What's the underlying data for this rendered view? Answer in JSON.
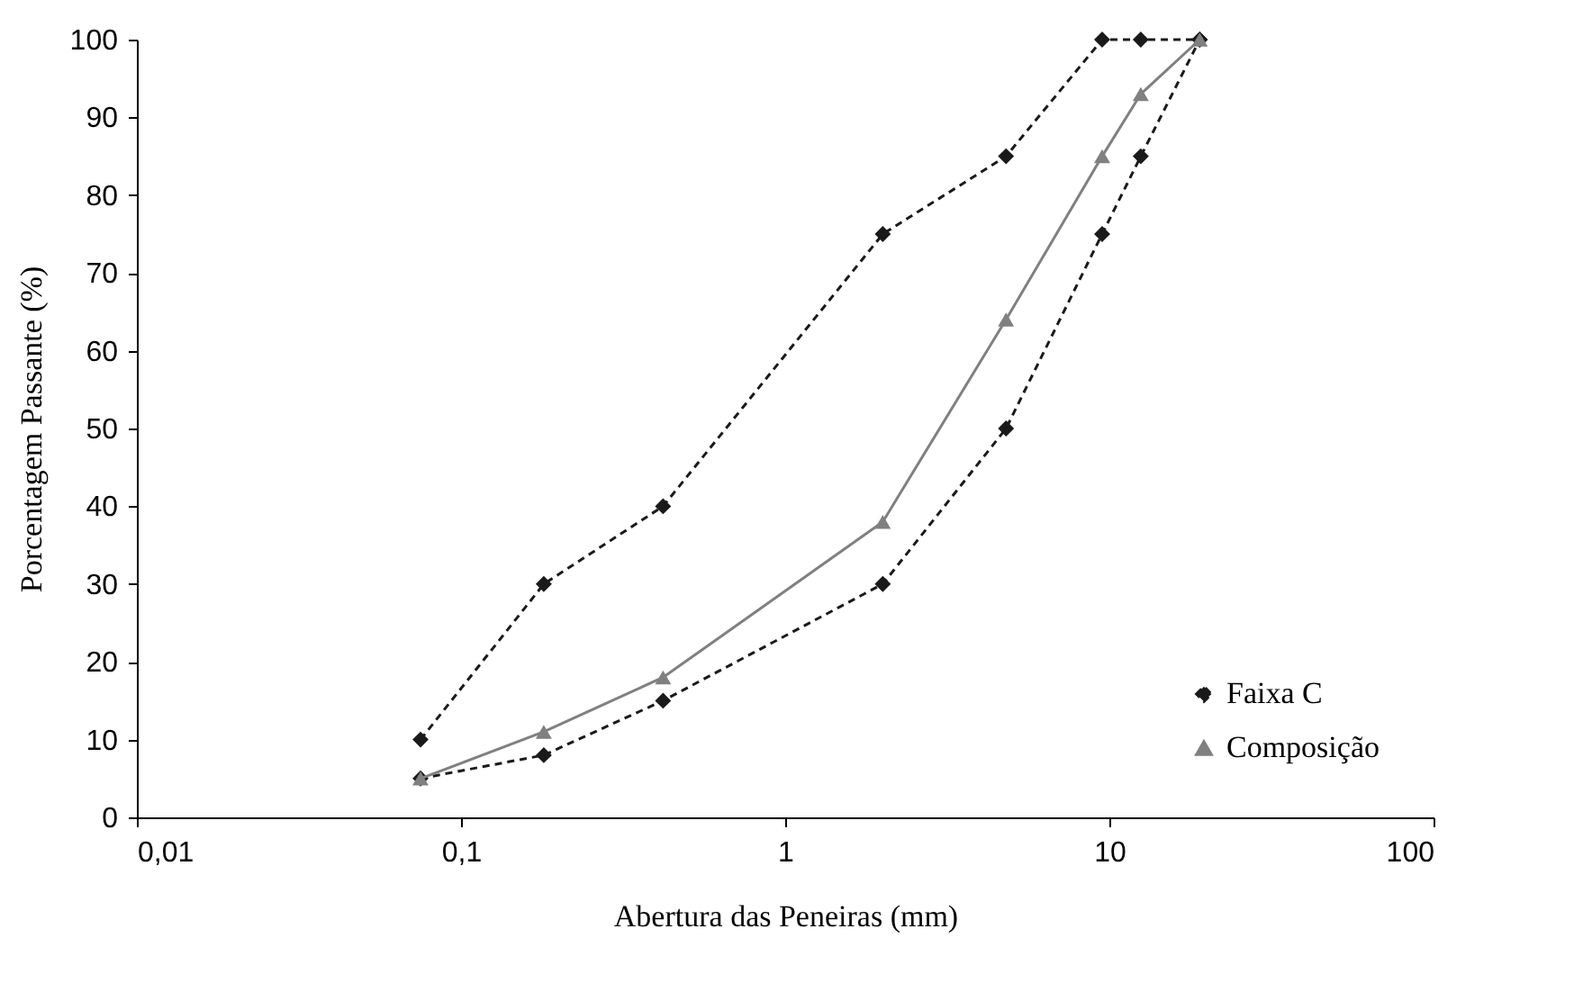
{
  "chart_data": {
    "type": "line",
    "xlabel": "Abertura das Peneiras (mm)",
    "ylabel": "Porcentagem Passante (%)",
    "log": "x",
    "xlim": [
      0.01,
      100
    ],
    "xticks": [
      {
        "value": 0.01,
        "label": "0,01"
      },
      {
        "value": 0.1,
        "label": "0,1"
      },
      1,
      10,
      100
    ],
    "ylim": [
      0,
      100
    ],
    "yticks": [
      0,
      10,
      20,
      30,
      40,
      50,
      60,
      70,
      80,
      90,
      100
    ],
    "grid": false,
    "legend": "bottom right",
    "x": [
      0.075,
      0.18,
      0.42,
      2,
      4.8,
      9.5,
      12.5,
      19
    ],
    "series": [
      {
        "name": "Faixa C",
        "color": "#1a1a1a",
        "marker": "diamond",
        "line_style": "dashed",
        "values": [
          10,
          30,
          40,
          75,
          85,
          100,
          100,
          100
        ]
      },
      {
        "color": "#1a1a1a",
        "marker": "diamond",
        "line_style": "dashed",
        "values": [
          5,
          8,
          15,
          30,
          50,
          75,
          85,
          100
        ]
      },
      {
        "name": "Composição",
        "color": "#808080",
        "marker": "triangle",
        "line_style": "solid",
        "values": [
          5,
          11,
          18,
          38,
          64,
          85,
          93,
          100
        ]
      }
    ]
  }
}
